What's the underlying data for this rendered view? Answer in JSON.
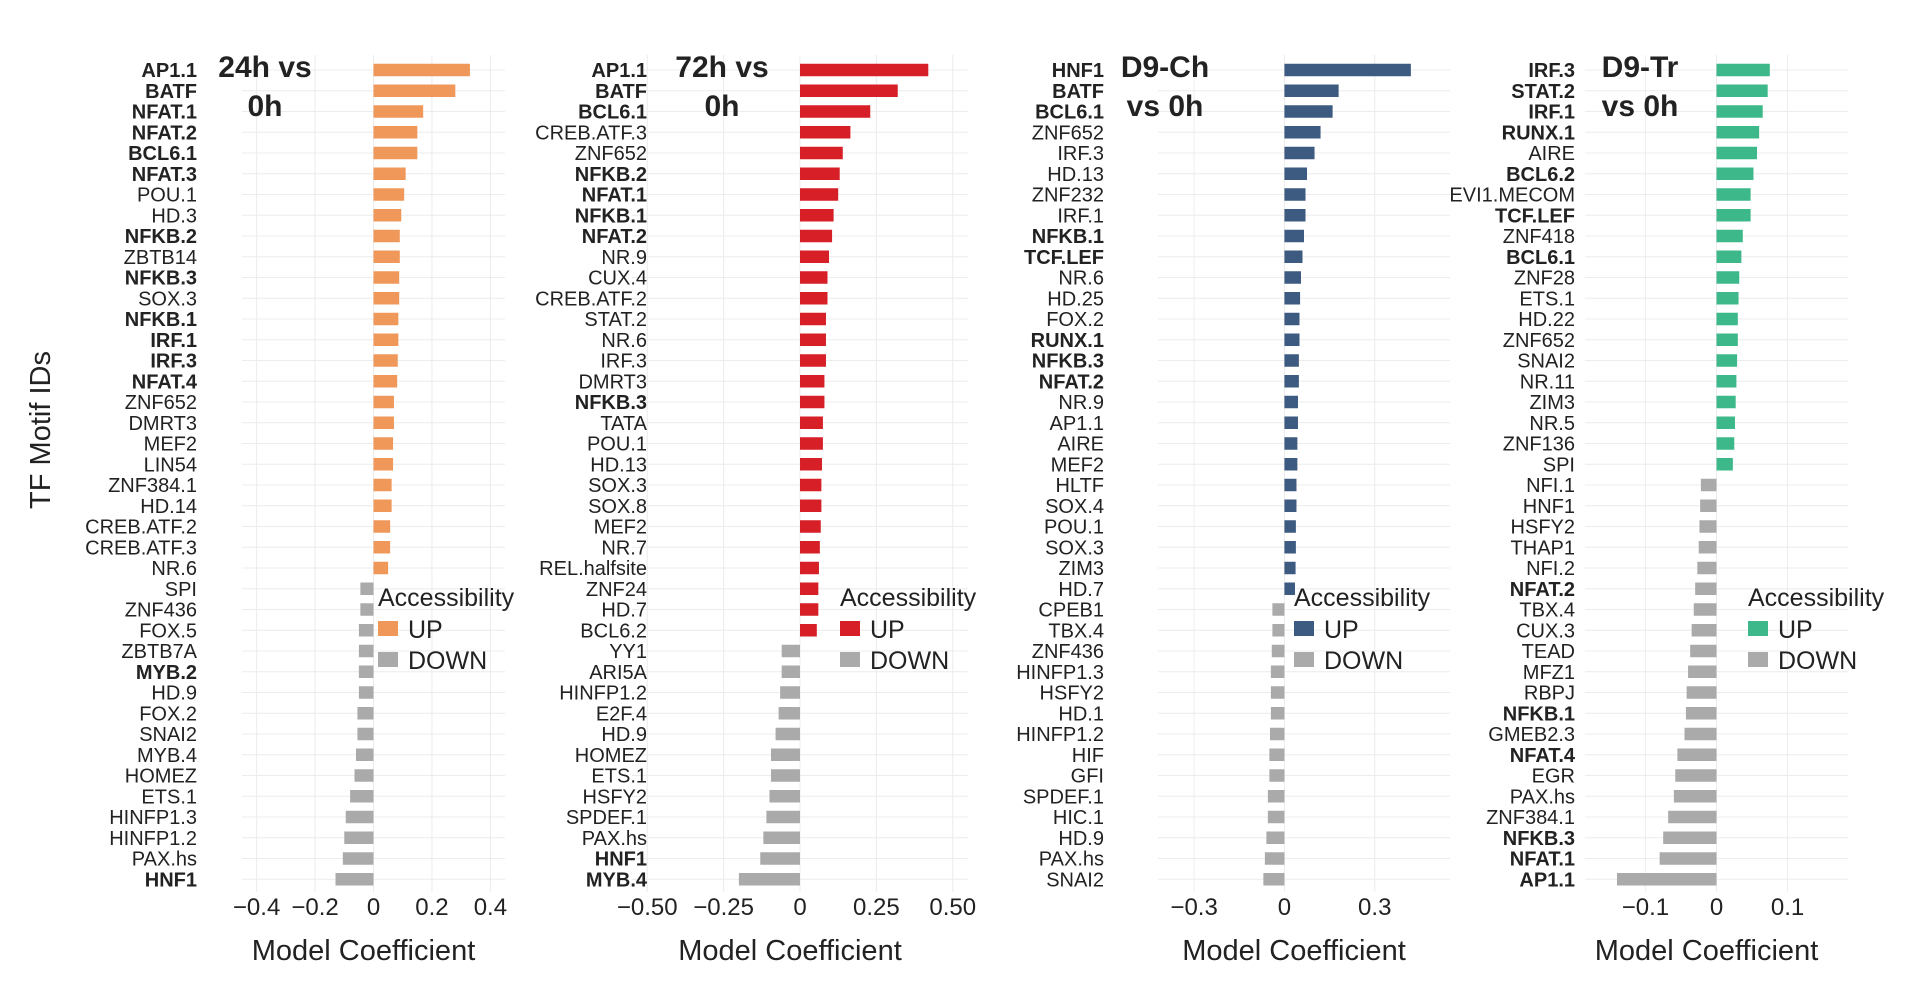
{
  "figure": {
    "y_axis_title": "TF Motif IDs",
    "x_axis_title": "Model Coefficient",
    "legend_title": "Accessibility",
    "legend_up": "UP",
    "legend_down": "DOWN"
  },
  "chart_data": [
    {
      "type": "bar",
      "orientation": "horizontal",
      "title_lines": [
        "24h vs",
        "0h"
      ],
      "color_up": "#f0975a",
      "color_down": "#aaaaaa",
      "xlim": [
        -0.45,
        0.45
      ],
      "xticks": [
        -0.4,
        -0.2,
        0,
        0.2,
        0.4
      ],
      "xtick_labels": [
        "−0.4",
        "−0.2",
        "0",
        "0.2",
        "0.4"
      ],
      "grid": true,
      "legend_position": "right",
      "categories": [
        "AP1.1",
        "BATF",
        "NFAT.1",
        "NFAT.2",
        "BCL6.1",
        "NFAT.3",
        "POU.1",
        "HD.3",
        "NFKB.2",
        "ZBTB14",
        "NFKB.3",
        "SOX.3",
        "NFKB.1",
        "IRF.1",
        "IRF.3",
        "NFAT.4",
        "ZNF652",
        "DMRT3",
        "MEF2",
        "LIN54",
        "ZNF384.1",
        "HD.14",
        "CREB.ATF.2",
        "CREB.ATF.3",
        "NR.6",
        "SPI",
        "ZNF436",
        "FOX.5",
        "ZBTB7A",
        "MYB.2",
        "HD.9",
        "FOX.2",
        "SNAI2",
        "MYB.4",
        "HOMEZ",
        "ETS.1",
        "HINFP1.3",
        "HINFP1.2",
        "PAX.hs",
        "HNF1"
      ],
      "bold": [
        true,
        true,
        true,
        true,
        true,
        true,
        false,
        false,
        true,
        false,
        true,
        false,
        true,
        true,
        true,
        true,
        false,
        false,
        false,
        false,
        false,
        false,
        false,
        false,
        false,
        false,
        false,
        false,
        false,
        true,
        false,
        false,
        false,
        false,
        false,
        false,
        false,
        false,
        false,
        true
      ],
      "values": [
        0.33,
        0.28,
        0.17,
        0.15,
        0.15,
        0.11,
        0.105,
        0.095,
        0.09,
        0.09,
        0.088,
        0.088,
        0.085,
        0.085,
        0.083,
        0.081,
        0.07,
        0.07,
        0.067,
        0.067,
        0.062,
        0.062,
        0.057,
        0.057,
        0.05,
        -0.045,
        -0.045,
        -0.05,
        -0.05,
        -0.05,
        -0.05,
        -0.055,
        -0.055,
        -0.06,
        -0.065,
        -0.08,
        -0.095,
        -0.1,
        -0.105,
        -0.13
      ]
    },
    {
      "type": "bar",
      "orientation": "horizontal",
      "title_lines": [
        "72h vs",
        "0h"
      ],
      "color_up": "#d61f26",
      "color_down": "#aaaaaa",
      "xlim": [
        -0.55,
        0.55
      ],
      "xticks": [
        -0.5,
        -0.25,
        0,
        0.25,
        0.5
      ],
      "xtick_labels": [
        "−0.50",
        "−0.25",
        "0",
        "0.25",
        "0.50"
      ],
      "grid": true,
      "legend_position": "right",
      "categories": [
        "AP1.1",
        "BATF",
        "BCL6.1",
        "CREB.ATF.3",
        "ZNF652",
        "NFKB.2",
        "NFAT.1",
        "NFKB.1",
        "NFAT.2",
        "NR.9",
        "CUX.4",
        "CREB.ATF.2",
        "STAT.2",
        "NR.6",
        "IRF.3",
        "DMRT3",
        "NFKB.3",
        "TATA",
        "POU.1",
        "HD.13",
        "SOX.3",
        "SOX.8",
        "MEF2",
        "NR.7",
        "REL.halfsite",
        "ZNF24",
        "HD.7",
        "BCL6.2",
        "YY1",
        "ARI5A",
        "HINFP1.2",
        "E2F.4",
        "HD.9",
        "HOMEZ",
        "ETS.1",
        "HSFY2",
        "SPDEF.1",
        "PAX.hs",
        "HNF1",
        "MYB.4"
      ],
      "bold": [
        true,
        true,
        true,
        false,
        false,
        true,
        true,
        true,
        true,
        false,
        false,
        false,
        false,
        false,
        false,
        false,
        true,
        false,
        false,
        false,
        false,
        false,
        false,
        false,
        false,
        false,
        false,
        false,
        false,
        false,
        false,
        false,
        false,
        false,
        false,
        false,
        false,
        false,
        true,
        true
      ],
      "values": [
        0.42,
        0.32,
        0.23,
        0.165,
        0.14,
        0.13,
        0.125,
        0.11,
        0.105,
        0.095,
        0.09,
        0.09,
        0.085,
        0.085,
        0.085,
        0.08,
        0.08,
        0.075,
        0.075,
        0.072,
        0.07,
        0.07,
        0.068,
        0.065,
        0.062,
        0.06,
        0.06,
        0.055,
        -0.06,
        -0.06,
        -0.065,
        -0.07,
        -0.08,
        -0.095,
        -0.095,
        -0.1,
        -0.11,
        -0.12,
        -0.13,
        -0.2
      ]
    },
    {
      "type": "bar",
      "orientation": "horizontal",
      "title_lines": [
        "D9-Ch",
        "vs 0h"
      ],
      "color_up": "#3d5a80",
      "color_down": "#aaaaaa",
      "xlim": [
        -0.42,
        0.55
      ],
      "xticks": [
        -0.3,
        0,
        0.3
      ],
      "xtick_labels": [
        "−0.3",
        "0",
        "0.3"
      ],
      "grid": true,
      "legend_position": "right",
      "categories": [
        "HNF1",
        "BATF",
        "BCL6.1",
        "ZNF652",
        "IRF.3",
        "HD.13",
        "ZNF232",
        "IRF.1",
        "NFKB.1",
        "TCF.LEF",
        "NR.6",
        "HD.25",
        "FOX.2",
        "RUNX.1",
        "NFKB.3",
        "NFAT.2",
        "NR.9",
        "AP1.1",
        "AIRE",
        "MEF2",
        "HLTF",
        "SOX.4",
        "POU.1",
        "SOX.3",
        "ZIM3",
        "HD.7",
        "CPEB1",
        "TBX.4",
        "ZNF436",
        "HINFP1.3",
        "HSFY2",
        "HD.1",
        "HINFP1.2",
        "HIF",
        "GFI",
        "SPDEF.1",
        "HIC.1",
        "HD.9",
        "PAX.hs",
        "SNAI2"
      ],
      "bold": [
        true,
        true,
        true,
        false,
        false,
        false,
        false,
        false,
        true,
        true,
        false,
        false,
        false,
        true,
        true,
        true,
        false,
        false,
        false,
        false,
        false,
        false,
        false,
        false,
        false,
        false,
        false,
        false,
        false,
        false,
        false,
        false,
        false,
        false,
        false,
        false,
        false,
        false,
        false,
        false
      ],
      "values": [
        0.42,
        0.18,
        0.16,
        0.12,
        0.1,
        0.075,
        0.07,
        0.07,
        0.065,
        0.06,
        0.055,
        0.052,
        0.05,
        0.05,
        0.048,
        0.048,
        0.045,
        0.045,
        0.043,
        0.043,
        0.04,
        0.04,
        0.038,
        0.038,
        0.037,
        0.035,
        -0.04,
        -0.04,
        -0.042,
        -0.045,
        -0.045,
        -0.045,
        -0.048,
        -0.05,
        -0.05,
        -0.055,
        -0.055,
        -0.06,
        -0.065,
        -0.07
      ]
    },
    {
      "type": "bar",
      "orientation": "horizontal",
      "title_lines": [
        "D9-Tr",
        "vs 0h"
      ],
      "color_up": "#3db88a",
      "color_down": "#aaaaaa",
      "xlim": [
        -0.185,
        0.185
      ],
      "xticks": [
        -0.1,
        0,
        0.1
      ],
      "xtick_labels": [
        "−0.1",
        "0",
        "0.1"
      ],
      "grid": true,
      "legend_position": "right",
      "categories": [
        "IRF.3",
        "STAT.2",
        "IRF.1",
        "RUNX.1",
        "AIRE",
        "BCL6.2",
        "EVI1.MECOM",
        "TCF.LEF",
        "ZNF418",
        "BCL6.1",
        "ZNF28",
        "ETS.1",
        "HD.22",
        "ZNF652",
        "SNAI2",
        "NR.11",
        "ZIM3",
        "NR.5",
        "ZNF136",
        "SPI",
        "NFI.1",
        "HNF1",
        "HSFY2",
        "THAP1",
        "NFI.2",
        "NFAT.2",
        "TBX.4",
        "CUX.3",
        "TEAD",
        "MFZ1",
        "RBPJ",
        "NFKB.1",
        "GMEB2.3",
        "NFAT.4",
        "EGR",
        "PAX.hs",
        "ZNF384.1",
        "NFKB.3",
        "NFAT.1",
        "AP1.1"
      ],
      "bold": [
        true,
        true,
        true,
        true,
        false,
        true,
        false,
        true,
        false,
        true,
        false,
        false,
        false,
        false,
        false,
        false,
        false,
        false,
        false,
        false,
        false,
        false,
        false,
        false,
        false,
        true,
        false,
        false,
        false,
        false,
        false,
        true,
        false,
        true,
        false,
        false,
        false,
        true,
        true,
        true
      ],
      "values": [
        0.075,
        0.072,
        0.065,
        0.06,
        0.057,
        0.052,
        0.048,
        0.048,
        0.037,
        0.035,
        0.032,
        0.031,
        0.03,
        0.03,
        0.029,
        0.028,
        0.027,
        0.026,
        0.025,
        0.023,
        -0.022,
        -0.023,
        -0.024,
        -0.025,
        -0.027,
        -0.03,
        -0.032,
        -0.035,
        -0.037,
        -0.04,
        -0.042,
        -0.043,
        -0.045,
        -0.055,
        -0.058,
        -0.06,
        -0.068,
        -0.075,
        -0.08,
        -0.14
      ]
    }
  ]
}
